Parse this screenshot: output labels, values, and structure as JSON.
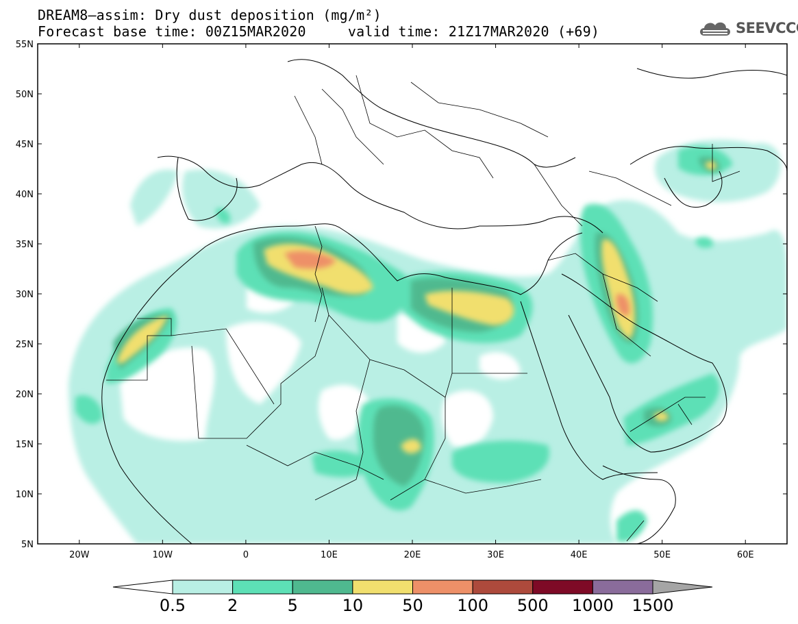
{
  "title_line1": "DREAM8–assim: Dry dust deposition (mg/m²)",
  "title_line2": "Forecast base time: 00Z15MAR2020     valid time: 21Z17MAR2020 (+69)",
  "logo_text": "SEEVCCC",
  "lat_labels": [
    "55N",
    "50N",
    "45N",
    "40N",
    "35N",
    "30N",
    "25N",
    "20N",
    "15N",
    "10N",
    "5N"
  ],
  "lon_labels": [
    "20W",
    "10W",
    "0",
    "10E",
    "20E",
    "30E",
    "40E",
    "50E",
    "60E"
  ],
  "colorbar": {
    "levels": [
      "0.5",
      "2",
      "5",
      "10",
      "50",
      "100",
      "500",
      "1000",
      "1500"
    ],
    "colors": [
      "#b9efe4",
      "#5de0b6",
      "#4fb98f",
      "#f1df6e",
      "#ee9068",
      "#ad4a3c",
      "#7e0a26",
      "#8a6c9b",
      "#a5a5a5"
    ]
  },
  "map": {
    "lat_range": [
      5,
      55
    ],
    "lon_range": [
      -25,
      65
    ],
    "hotspots": [
      {
        "name": "Algeria-Tunisia",
        "level": "50"
      },
      {
        "name": "Libya coast",
        "level": "10"
      },
      {
        "name": "Egypt coast",
        "level": "10"
      },
      {
        "name": "Western Sahara coast",
        "level": "10"
      },
      {
        "name": "Iraq / Mesopotamia",
        "level": "50"
      },
      {
        "name": "Chad",
        "level": "10"
      },
      {
        "name": "Yemen",
        "level": "10"
      },
      {
        "name": "Caspian Sea",
        "level": "10"
      }
    ]
  }
}
